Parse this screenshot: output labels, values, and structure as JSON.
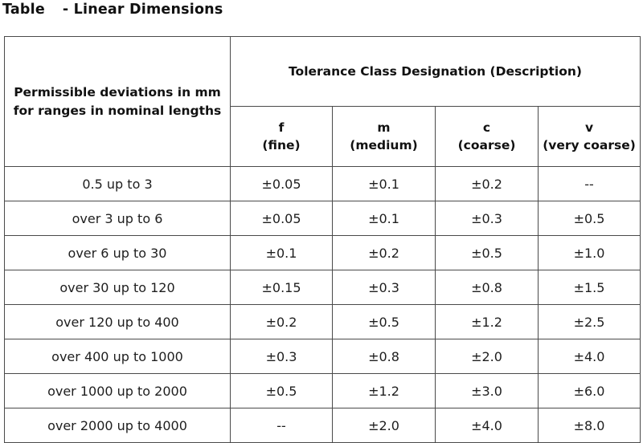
{
  "title": {
    "prefix": "Table",
    "text": "- Linear Dimensions"
  },
  "table": {
    "row_header": "Permissible deviations in mm for ranges in nominal lengths",
    "group_header": "Tolerance Class Designation (Description)",
    "classes": [
      {
        "code": "f",
        "desc": "(fine)"
      },
      {
        "code": "m",
        "desc": "(medium)"
      },
      {
        "code": "c",
        "desc": "(coarse)"
      },
      {
        "code": "v",
        "desc": "(very coarse)"
      }
    ],
    "rows": [
      {
        "range": "0.5 up to 3",
        "values": [
          "±0.05",
          "±0.1",
          "±0.2",
          "--"
        ]
      },
      {
        "range": "over 3 up to 6",
        "values": [
          "±0.05",
          "±0.1",
          "±0.3",
          "±0.5"
        ]
      },
      {
        "range": "over 6 up to 30",
        "values": [
          "±0.1",
          "±0.2",
          "±0.5",
          "±1.0"
        ]
      },
      {
        "range": "over 30 up to 120",
        "values": [
          "±0.15",
          "±0.3",
          "±0.8",
          "±1.5"
        ]
      },
      {
        "range": "over 120 up to 400",
        "values": [
          "±0.2",
          "±0.5",
          "±1.2",
          "±2.5"
        ]
      },
      {
        "range": "over 400 up to 1000",
        "values": [
          "±0.3",
          "±0.8",
          "±2.0",
          "±4.0"
        ]
      },
      {
        "range": "over 1000 up to 2000",
        "values": [
          "±0.5",
          "±1.2",
          "±3.0",
          "±6.0"
        ]
      },
      {
        "range": "over 2000 up to 4000",
        "values": [
          "--",
          "±2.0",
          "±4.0",
          "±8.0"
        ]
      }
    ]
  }
}
